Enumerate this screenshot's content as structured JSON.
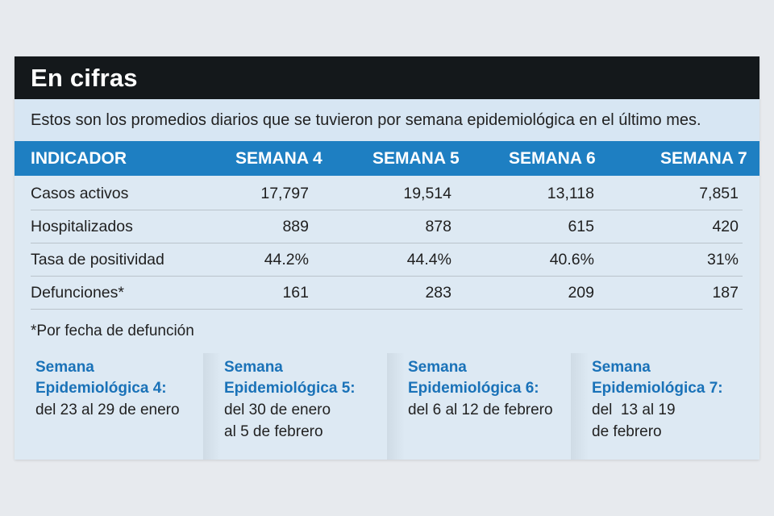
{
  "title": "En cifras",
  "intro": "Estos son los promedios diarios que se tuvieron por semana epidemiológica en el último mes.",
  "table": {
    "headers": [
      "INDICADOR",
      "SEMANA 4",
      "SEMANA 5",
      "SEMANA 6",
      "SEMANA 7"
    ],
    "rows": [
      {
        "label": "Casos activos",
        "values": [
          "17,797",
          "19,514",
          "13,118",
          "7,851"
        ]
      },
      {
        "label": "Hospitalizados",
        "values": [
          "889",
          "878",
          "615",
          "420"
        ]
      },
      {
        "label": "Tasa de positividad",
        "values": [
          "44.2%",
          "44.4%",
          "40.6%",
          "31%"
        ]
      },
      {
        "label": "Defunciones*",
        "values": [
          "161",
          "283",
          "209",
          "187"
        ]
      }
    ]
  },
  "footnote": "*Por fecha de defunción",
  "weeks": [
    {
      "title1": "Semana",
      "title2": "Epidemiológica 4:",
      "line1": "del 23 al 29 de enero",
      "line2": ""
    },
    {
      "title1": "Semana",
      "title2": "Epidemiológica 5:",
      "line1": "del 30 de enero",
      "line2": "al 5 de febrero"
    },
    {
      "title1": "Semana",
      "title2": "Epidemiológica 6:",
      "line1": "del 6 al 12 de febrero",
      "line2": ""
    },
    {
      "title1": "Semana",
      "title2": "Epidemiológica 7:",
      "line1": "del  13 al 19",
      "line2": "de febrero"
    }
  ]
}
